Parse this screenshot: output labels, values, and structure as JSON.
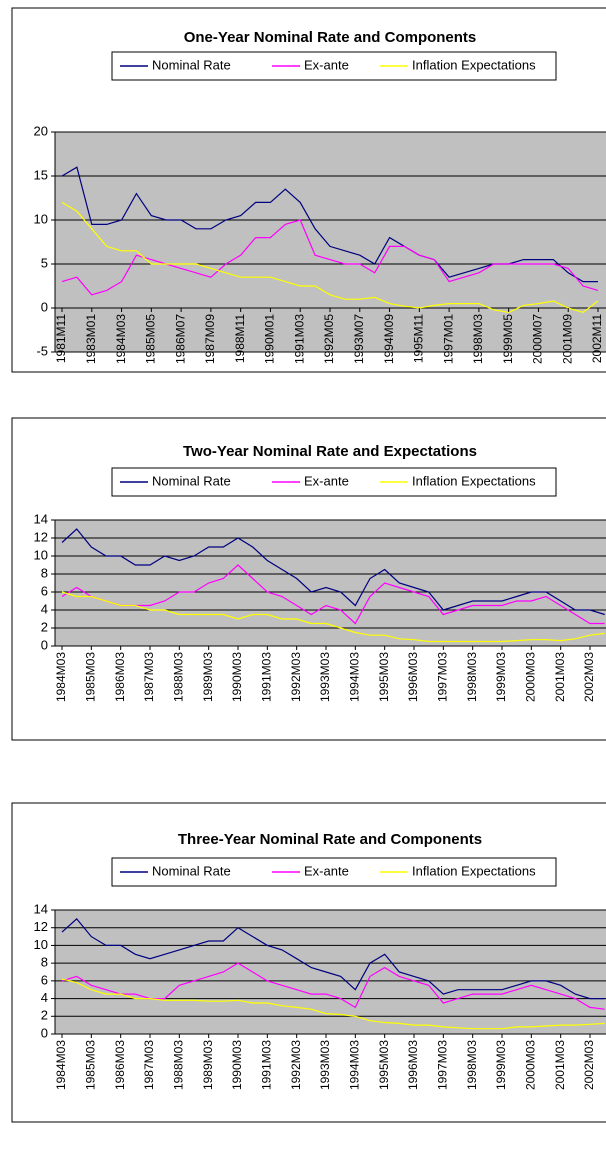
{
  "chart_data": [
    {
      "type": "line",
      "title": "One-Year Nominal Rate and Components",
      "categories": [
        "1981M11",
        null,
        "1983M01",
        null,
        "1984M03",
        null,
        "1985M05",
        null,
        "1986M07",
        null,
        "1987M09",
        null,
        "1988M11",
        null,
        "1990M01",
        null,
        "1991M03",
        null,
        "1992M05",
        null,
        "1993M07",
        null,
        "1994M09",
        null,
        "1995M11",
        null,
        "1997M01",
        null,
        "1998M03",
        null,
        "1999M05",
        null,
        "2000M07",
        null,
        "2001M09",
        null,
        "2002M11"
      ],
      "series": [
        {
          "name": "Nominal Rate",
          "color": "#000080",
          "values": [
            15,
            16,
            9.5,
            9.5,
            10,
            13,
            10.5,
            10,
            10,
            9,
            9,
            10,
            10.5,
            12,
            12,
            13.5,
            12,
            9,
            7,
            6.5,
            6,
            5,
            8,
            7,
            6,
            5.5,
            3.5,
            4,
            4.5,
            5,
            5,
            5.5,
            5.5,
            5.5,
            4,
            3,
            3
          ]
        },
        {
          "name": "Ex-ante",
          "color": "#ff00ff",
          "values": [
            3,
            3.5,
            1.5,
            2,
            3,
            6,
            5.5,
            5,
            4.5,
            4,
            3.5,
            5,
            6,
            8,
            8,
            9.5,
            10,
            6,
            5.5,
            5,
            5,
            4,
            7,
            7,
            6,
            5.5,
            3,
            3.5,
            4,
            5,
            5,
            5,
            5,
            5,
            4.5,
            2.5,
            2
          ]
        },
        {
          "name": "Inflation Expectations",
          "color": "#ffff00",
          "values": [
            12,
            11,
            9,
            7,
            6.5,
            6.5,
            5,
            5,
            5,
            5,
            4.5,
            4,
            3.5,
            3.5,
            3.5,
            3,
            2.5,
            2.5,
            1.5,
            1,
            1,
            1.2,
            0.5,
            0.2,
            0,
            0.3,
            0.5,
            0.5,
            0.5,
            -0.2,
            -0.5,
            0.3,
            0.5,
            0.8,
            0,
            -0.5,
            0.8
          ]
        }
      ],
      "ylim": [
        -5,
        20
      ],
      "yticks": [
        -5,
        0,
        5,
        10,
        15,
        20
      ],
      "grid": true
    },
    {
      "type": "line",
      "title": "Two-Year Nominal Rate and Expectations",
      "categories": [
        "1984M03",
        null,
        "1985M03",
        null,
        "1986M03",
        null,
        "1987M03",
        null,
        "1988M03",
        null,
        "1989M03",
        null,
        "1990M03",
        null,
        "1991M03",
        null,
        "1992M03",
        null,
        "1993M03",
        null,
        "1994M03",
        null,
        "1995M03",
        null,
        "1996M03",
        null,
        "1997M03",
        null,
        "1998M03",
        null,
        "1999M03",
        null,
        "2000M03",
        null,
        "2001M03",
        null,
        "2002M03",
        null
      ],
      "series": [
        {
          "name": "Nominal Rate",
          "color": "#000080",
          "values": [
            11.5,
            13,
            11,
            10,
            10,
            9,
            9,
            10,
            9.5,
            10,
            11,
            11,
            12,
            11,
            9.5,
            8.5,
            7.5,
            6,
            6.5,
            6,
            4.5,
            7.5,
            8.5,
            7,
            6.5,
            6,
            4,
            4.5,
            5,
            5,
            5,
            5.5,
            6,
            6,
            5,
            4,
            4,
            3.5
          ]
        },
        {
          "name": "Ex-ante",
          "color": "#ff00ff",
          "values": [
            5.5,
            6.5,
            5.5,
            5,
            4.5,
            4.5,
            4.5,
            5,
            6,
            6,
            7,
            7.5,
            9,
            7.5,
            6,
            5.5,
            4.5,
            3.5,
            4.5,
            4,
            2.5,
            5.5,
            7,
            6.5,
            6,
            5.5,
            3.5,
            4,
            4.5,
            4.5,
            4.5,
            5,
            5,
            5.5,
            4.5,
            3.5,
            2.5,
            2.5
          ]
        },
        {
          "name": "Inflation Expectations",
          "color": "#ffff00",
          "values": [
            6,
            5.5,
            5.5,
            5,
            4.5,
            4.5,
            4,
            4,
            3.5,
            3.5,
            3.5,
            3.5,
            3,
            3.5,
            3.5,
            3,
            3,
            2.5,
            2.5,
            2,
            1.5,
            1.2,
            1.2,
            0.8,
            0.7,
            0.5,
            0.5,
            0.5,
            0.5,
            0.5,
            0.5,
            0.6,
            0.7,
            0.7,
            0.6,
            0.8,
            1.2,
            1.4
          ]
        }
      ],
      "ylim": [
        0,
        14
      ],
      "yticks": [
        0,
        2,
        4,
        6,
        8,
        10,
        12,
        14
      ],
      "grid": true
    },
    {
      "type": "line",
      "title": "Three-Year Nominal Rate and Components",
      "categories": [
        "1984M03",
        null,
        "1985M03",
        null,
        "1986M03",
        null,
        "1987M03",
        null,
        "1988M03",
        null,
        "1989M03",
        null,
        "1990M03",
        null,
        "1991M03",
        null,
        "1992M03",
        null,
        "1993M03",
        null,
        "1994M03",
        null,
        "1995M03",
        null,
        "1996M03",
        null,
        "1997M03",
        null,
        "1998M03",
        null,
        "1999M03",
        null,
        "2000M03",
        null,
        "2001M03",
        null,
        "2002M03",
        null
      ],
      "series": [
        {
          "name": "Nominal Rate",
          "color": "#000080",
          "values": [
            11.5,
            13,
            11,
            10,
            10,
            9,
            8.5,
            9,
            9.5,
            10,
            10.5,
            10.5,
            12,
            11,
            10,
            9.5,
            8.5,
            7.5,
            7,
            6.5,
            5,
            8,
            9,
            7,
            6.5,
            6,
            4.5,
            5,
            5,
            5,
            5,
            5.5,
            6,
            6,
            5.5,
            4.5,
            4,
            4
          ]
        },
        {
          "name": "Ex-ante",
          "color": "#ff00ff",
          "values": [
            6,
            6.5,
            5.5,
            5,
            4.5,
            4.5,
            4,
            4,
            5.5,
            6,
            6.5,
            7,
            8,
            7,
            6,
            5.5,
            5,
            4.5,
            4.5,
            4,
            3,
            6.5,
            7.5,
            6.5,
            6,
            5.5,
            3.5,
            4,
            4.5,
            4.5,
            4.5,
            5,
            5.5,
            5,
            4.5,
            4,
            3,
            2.8
          ]
        },
        {
          "name": "Inflation Expectations",
          "color": "#ffff00",
          "values": [
            6.2,
            5.8,
            5,
            4.5,
            4.5,
            4,
            4,
            3.8,
            3.8,
            3.8,
            3.7,
            3.7,
            3.8,
            3.5,
            3.5,
            3.2,
            3,
            2.8,
            2.3,
            2.2,
            2,
            1.5,
            1.3,
            1.2,
            1,
            1,
            0.8,
            0.7,
            0.6,
            0.6,
            0.6,
            0.8,
            0.8,
            0.9,
            1,
            1,
            1.1,
            1.2
          ]
        }
      ],
      "ylim": [
        0,
        14
      ],
      "yticks": [
        0,
        2,
        4,
        6,
        8,
        10,
        12,
        14
      ],
      "grid": true
    }
  ]
}
